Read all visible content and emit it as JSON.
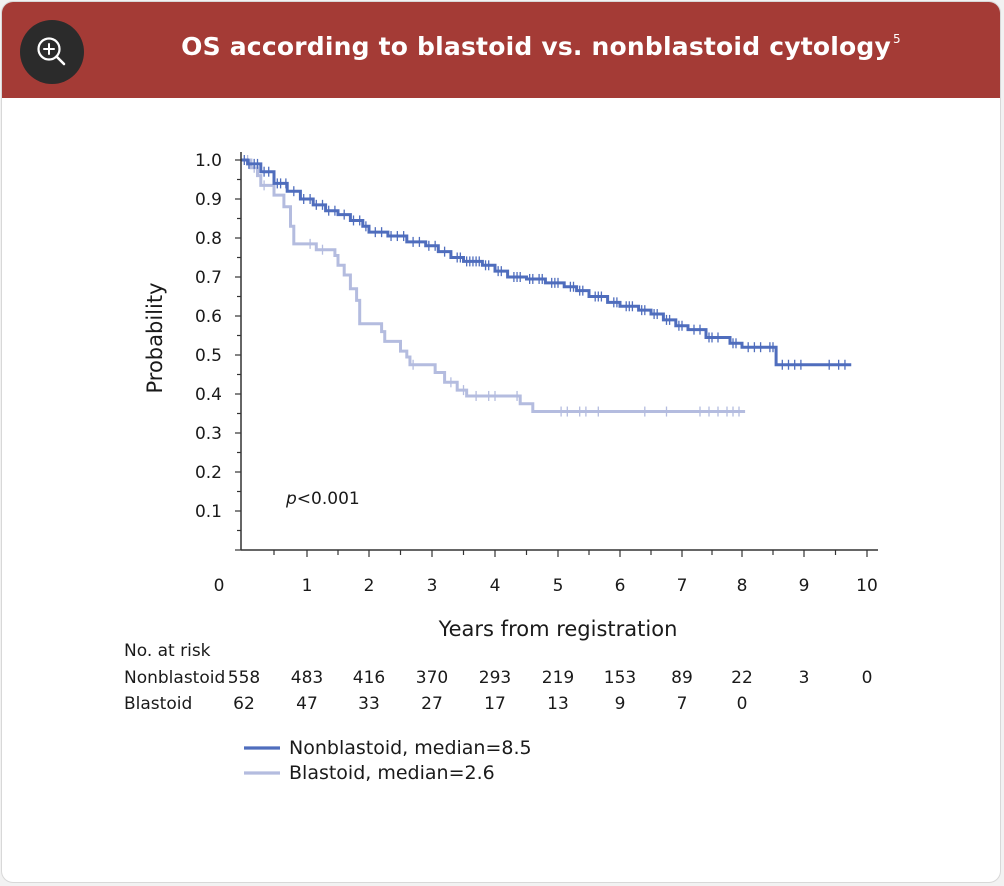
{
  "header": {
    "title": "OS according to blastoid vs. nonblastoid cytology",
    "title_superscript": "5",
    "zoom_icon": "zoom-in-icon",
    "background_color": "#a43b36"
  },
  "chart_data": {
    "type": "line",
    "subtype": "kaplan-meier",
    "title": "OS according to blastoid vs. nonblastoid cytology",
    "xlabel": "Years from registration",
    "ylabel": "Probability",
    "xlim": [
      0,
      10
    ],
    "ylim": [
      0,
      1.0
    ],
    "x_ticks": [
      "0",
      "1",
      "2",
      "3",
      "4",
      "5",
      "6",
      "7",
      "8",
      "9",
      "10"
    ],
    "y_ticks": [
      "1.0",
      "0.9",
      "0.8",
      "0.7",
      "0.6",
      "0.5",
      "0.4",
      "0.3",
      "0.2",
      "0.1"
    ],
    "annotation": {
      "prefix": "p",
      "text": "<0.001"
    },
    "series": [
      {
        "name": "Nonblastoid",
        "legend_label": "Nonblastoid, median=8.5",
        "color": "#4f6dbd",
        "steps": [
          [
            0,
            1.0
          ],
          [
            0.1,
            0.99
          ],
          [
            0.3,
            0.97
          ],
          [
            0.5,
            0.94
          ],
          [
            0.7,
            0.92
          ],
          [
            0.9,
            0.9
          ],
          [
            1.1,
            0.885
          ],
          [
            1.3,
            0.87
          ],
          [
            1.5,
            0.86
          ],
          [
            1.7,
            0.845
          ],
          [
            1.9,
            0.83
          ],
          [
            2.0,
            0.815
          ],
          [
            2.3,
            0.805
          ],
          [
            2.6,
            0.79
          ],
          [
            2.9,
            0.78
          ],
          [
            3.1,
            0.765
          ],
          [
            3.3,
            0.75
          ],
          [
            3.5,
            0.74
          ],
          [
            3.8,
            0.73
          ],
          [
            4.0,
            0.715
          ],
          [
            4.2,
            0.7
          ],
          [
            4.5,
            0.695
          ],
          [
            4.8,
            0.685
          ],
          [
            5.1,
            0.675
          ],
          [
            5.3,
            0.665
          ],
          [
            5.5,
            0.65
          ],
          [
            5.8,
            0.635
          ],
          [
            6.0,
            0.625
          ],
          [
            6.3,
            0.615
          ],
          [
            6.5,
            0.605
          ],
          [
            6.7,
            0.59
          ],
          [
            6.9,
            0.575
          ],
          [
            7.1,
            0.565
          ],
          [
            7.4,
            0.545
          ],
          [
            7.8,
            0.53
          ],
          [
            8.0,
            0.52
          ],
          [
            8.55,
            0.475
          ],
          [
            9.75,
            0.475
          ]
        ],
        "censor_times": [
          0.05,
          0.12,
          0.2,
          0.25,
          0.35,
          0.42,
          0.55,
          0.6,
          0.68,
          0.8,
          0.95,
          1.05,
          1.15,
          1.25,
          1.35,
          1.45,
          1.6,
          1.75,
          1.85,
          1.95,
          2.1,
          2.2,
          2.35,
          2.45,
          2.55,
          2.7,
          2.8,
          2.95,
          3.05,
          3.2,
          3.4,
          3.45,
          3.55,
          3.6,
          3.65,
          3.7,
          3.75,
          3.85,
          3.9,
          4.05,
          4.1,
          4.3,
          4.35,
          4.4,
          4.55,
          4.6,
          4.7,
          4.75,
          4.9,
          4.95,
          5.0,
          5.2,
          5.25,
          5.35,
          5.4,
          5.6,
          5.65,
          5.7,
          5.9,
          5.95,
          6.1,
          6.15,
          6.2,
          6.35,
          6.4,
          6.55,
          6.6,
          6.75,
          6.8,
          6.95,
          7.0,
          7.2,
          7.3,
          7.45,
          7.5,
          7.6,
          7.85,
          7.9,
          8.1,
          8.2,
          8.3,
          8.45,
          8.5,
          8.65,
          8.75,
          8.85,
          8.95,
          9.4,
          9.55,
          9.65
        ]
      },
      {
        "name": "Blastoid",
        "legend_label": "Blastoid, median=2.6",
        "color": "#b4bcdf",
        "steps": [
          [
            0,
            1.0
          ],
          [
            0.15,
            0.98
          ],
          [
            0.25,
            0.96
          ],
          [
            0.3,
            0.935
          ],
          [
            0.5,
            0.91
          ],
          [
            0.65,
            0.88
          ],
          [
            0.75,
            0.83
          ],
          [
            0.8,
            0.785
          ],
          [
            1.15,
            0.77
          ],
          [
            1.45,
            0.755
          ],
          [
            1.5,
            0.73
          ],
          [
            1.6,
            0.705
          ],
          [
            1.7,
            0.67
          ],
          [
            1.8,
            0.64
          ],
          [
            1.85,
            0.58
          ],
          [
            2.2,
            0.56
          ],
          [
            2.25,
            0.535
          ],
          [
            2.5,
            0.51
          ],
          [
            2.6,
            0.495
          ],
          [
            2.65,
            0.475
          ],
          [
            3.05,
            0.455
          ],
          [
            3.2,
            0.43
          ],
          [
            3.4,
            0.41
          ],
          [
            3.55,
            0.395
          ],
          [
            4.4,
            0.375
          ],
          [
            4.6,
            0.355
          ],
          [
            8.05,
            0.355
          ]
        ],
        "censor_times": [
          0.1,
          0.2,
          0.35,
          1.05,
          1.25,
          2.7,
          3.3,
          3.5,
          3.7,
          3.9,
          4.0,
          4.35,
          5.05,
          5.15,
          5.35,
          5.45,
          5.65,
          6.4,
          6.75,
          7.3,
          7.45,
          7.6,
          7.75,
          7.85,
          7.95
        ]
      }
    ],
    "risk_table": {
      "title": "No. at risk",
      "rows": [
        {
          "label": "Nonblastoid",
          "counts": [
            "558",
            "483",
            "416",
            "370",
            "293",
            "219",
            "153",
            "89",
            "22",
            "3",
            "0"
          ]
        },
        {
          "label": "Blastoid",
          "counts": [
            "62",
            "47",
            "33",
            "27",
            "17",
            "13",
            "9",
            "7",
            "0"
          ]
        }
      ]
    },
    "legend_position": "bottom-left"
  }
}
